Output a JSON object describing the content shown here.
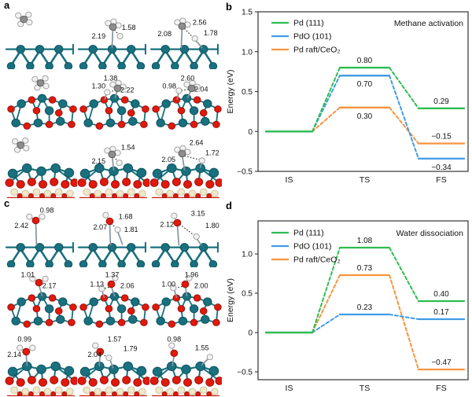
{
  "figure": {
    "panel_labels": {
      "a": "a",
      "b": "b",
      "c": "c",
      "d": "d"
    }
  },
  "structures": {
    "atom_colors": {
      "pd": "#19707e",
      "pd_stroke": "#0d4f5c",
      "o": "#e1190c",
      "o_stroke": "#94100a",
      "h": "#f2f2f2",
      "h_stroke": "#9a9a9a",
      "c": "#8d8d8d",
      "c_stroke": "#585858",
      "ce": "#efe8cb",
      "ce_stroke": "#c9bd92"
    },
    "a": {
      "rows": [
        {
          "cells": [
            {
              "labels": []
            },
            {
              "labels": [
                "2.19",
                "1.58"
              ]
            },
            {
              "labels": [
                "2.08",
                "2.56",
                "1.78"
              ]
            }
          ]
        },
        {
          "cells": [
            {
              "labels": []
            },
            {
              "labels": [
                "1.30",
                "1.38",
                "2.22"
              ]
            },
            {
              "labels": [
                "0.98",
                "2.60",
                "2.04"
              ]
            }
          ]
        },
        {
          "cells": [
            {
              "labels": []
            },
            {
              "labels": [
                "2.15",
                "1.54"
              ]
            },
            {
              "labels": [
                "2.05",
                "2.64",
                "1.72"
              ]
            }
          ]
        }
      ]
    },
    "c": {
      "rows": [
        {
          "cells": [
            {
              "labels": [
                "0.98",
                "2.42"
              ]
            },
            {
              "labels": [
                "1.68",
                "2.07",
                "1.81"
              ]
            },
            {
              "labels": [
                "3.15",
                "2.12",
                "1.80"
              ]
            }
          ]
        },
        {
          "cells": [
            {
              "labels": [
                "1.01",
                "2.17"
              ]
            },
            {
              "labels": [
                "1.37",
                "1.13",
                "2.06"
              ]
            },
            {
              "labels": [
                "1.96",
                "1.00",
                "2.00"
              ]
            }
          ]
        },
        {
          "cells": [
            {
              "labels": [
                "0.99",
                "2.14"
              ]
            },
            {
              "labels": [
                "1.57",
                "2.04",
                "1.79"
              ]
            },
            {
              "labels": [
                "0.98",
                "1.55"
              ]
            }
          ]
        }
      ]
    }
  },
  "chart_data": [
    {
      "id": "b",
      "type": "line",
      "title": "Methane activation",
      "categories": [
        "IS",
        "TS",
        "FS"
      ],
      "xlabel": "",
      "ylabel": "Energy (eV)",
      "ylim": [
        -0.5,
        1.5
      ],
      "yticks": [
        {
          "v": 1.5,
          "label": "1.5"
        },
        {
          "v": 1.0,
          "label": "1.0"
        },
        {
          "v": 0.5,
          "label": "0.5"
        },
        {
          "v": 0,
          "label": "0"
        },
        {
          "v": -0.5,
          "label": "−0.5"
        }
      ],
      "grid": false,
      "legend_position": "top-left",
      "series": [
        {
          "name": "Pd (111)",
          "color": "#2ebd51",
          "values": [
            0,
            0.8,
            0.29
          ],
          "point_labels": {
            "TS": "0.80",
            "FS": "0.29"
          }
        },
        {
          "name": "PdO (101)",
          "color": "#3f9ce8",
          "values": [
            0,
            0.7,
            -0.34
          ],
          "point_labels": {
            "TS": "0.70",
            "FS": "−0.34"
          }
        },
        {
          "name": "Pd raft/CeO₂",
          "color": "#f79440",
          "values": [
            0,
            0.3,
            -0.15
          ],
          "point_labels": {
            "TS": "0.30",
            "FS": "−0.15"
          }
        }
      ]
    },
    {
      "id": "d",
      "type": "line",
      "title": "Water dissociation",
      "categories": [
        "IS",
        "TS",
        "FS"
      ],
      "xlabel": "",
      "ylabel": "Energy (eV)",
      "ylim": [
        -0.6,
        1.42
      ],
      "yticks": [
        {
          "v": 1.0,
          "label": "1.0"
        },
        {
          "v": 0.5,
          "label": "0.5"
        },
        {
          "v": 0,
          "label": "0"
        },
        {
          "v": -0.5,
          "label": "−0.5"
        }
      ],
      "grid": false,
      "legend_position": "top-left",
      "series": [
        {
          "name": "Pd (111)",
          "color": "#2ebd51",
          "values": [
            0,
            1.08,
            0.4
          ],
          "point_labels": {
            "TS": "1.08",
            "FS": "0.40"
          }
        },
        {
          "name": "PdO (101)",
          "color": "#3f9ce8",
          "values": [
            0,
            0.23,
            0.17
          ],
          "point_labels": {
            "TS": "0.23",
            "FS": "0.17"
          }
        },
        {
          "name": "Pd raft/CeO₂",
          "color": "#f79440",
          "values": [
            0,
            0.73,
            -0.47
          ],
          "point_labels": {
            "TS": "0.73",
            "FS": "−0.47"
          }
        }
      ]
    }
  ]
}
